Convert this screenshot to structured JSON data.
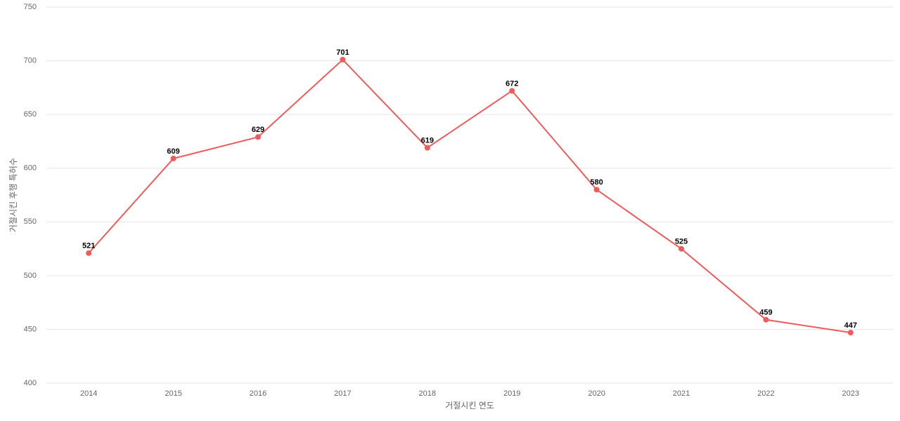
{
  "chart_data": {
    "type": "line",
    "x_label": "거절시킨 연도",
    "y_label": "거절시킨 후행 특허수",
    "categories": [
      "2014",
      "2015",
      "2016",
      "2017",
      "2018",
      "2019",
      "2020",
      "2021",
      "2022",
      "2023"
    ],
    "values": [
      521,
      609,
      629,
      701,
      619,
      672,
      580,
      525,
      459,
      447
    ],
    "color": "#ef5b5b",
    "ylim": [
      400,
      750
    ],
    "yticks": [
      400,
      450,
      500,
      550,
      600,
      650,
      700,
      750
    ],
    "grid": true
  }
}
